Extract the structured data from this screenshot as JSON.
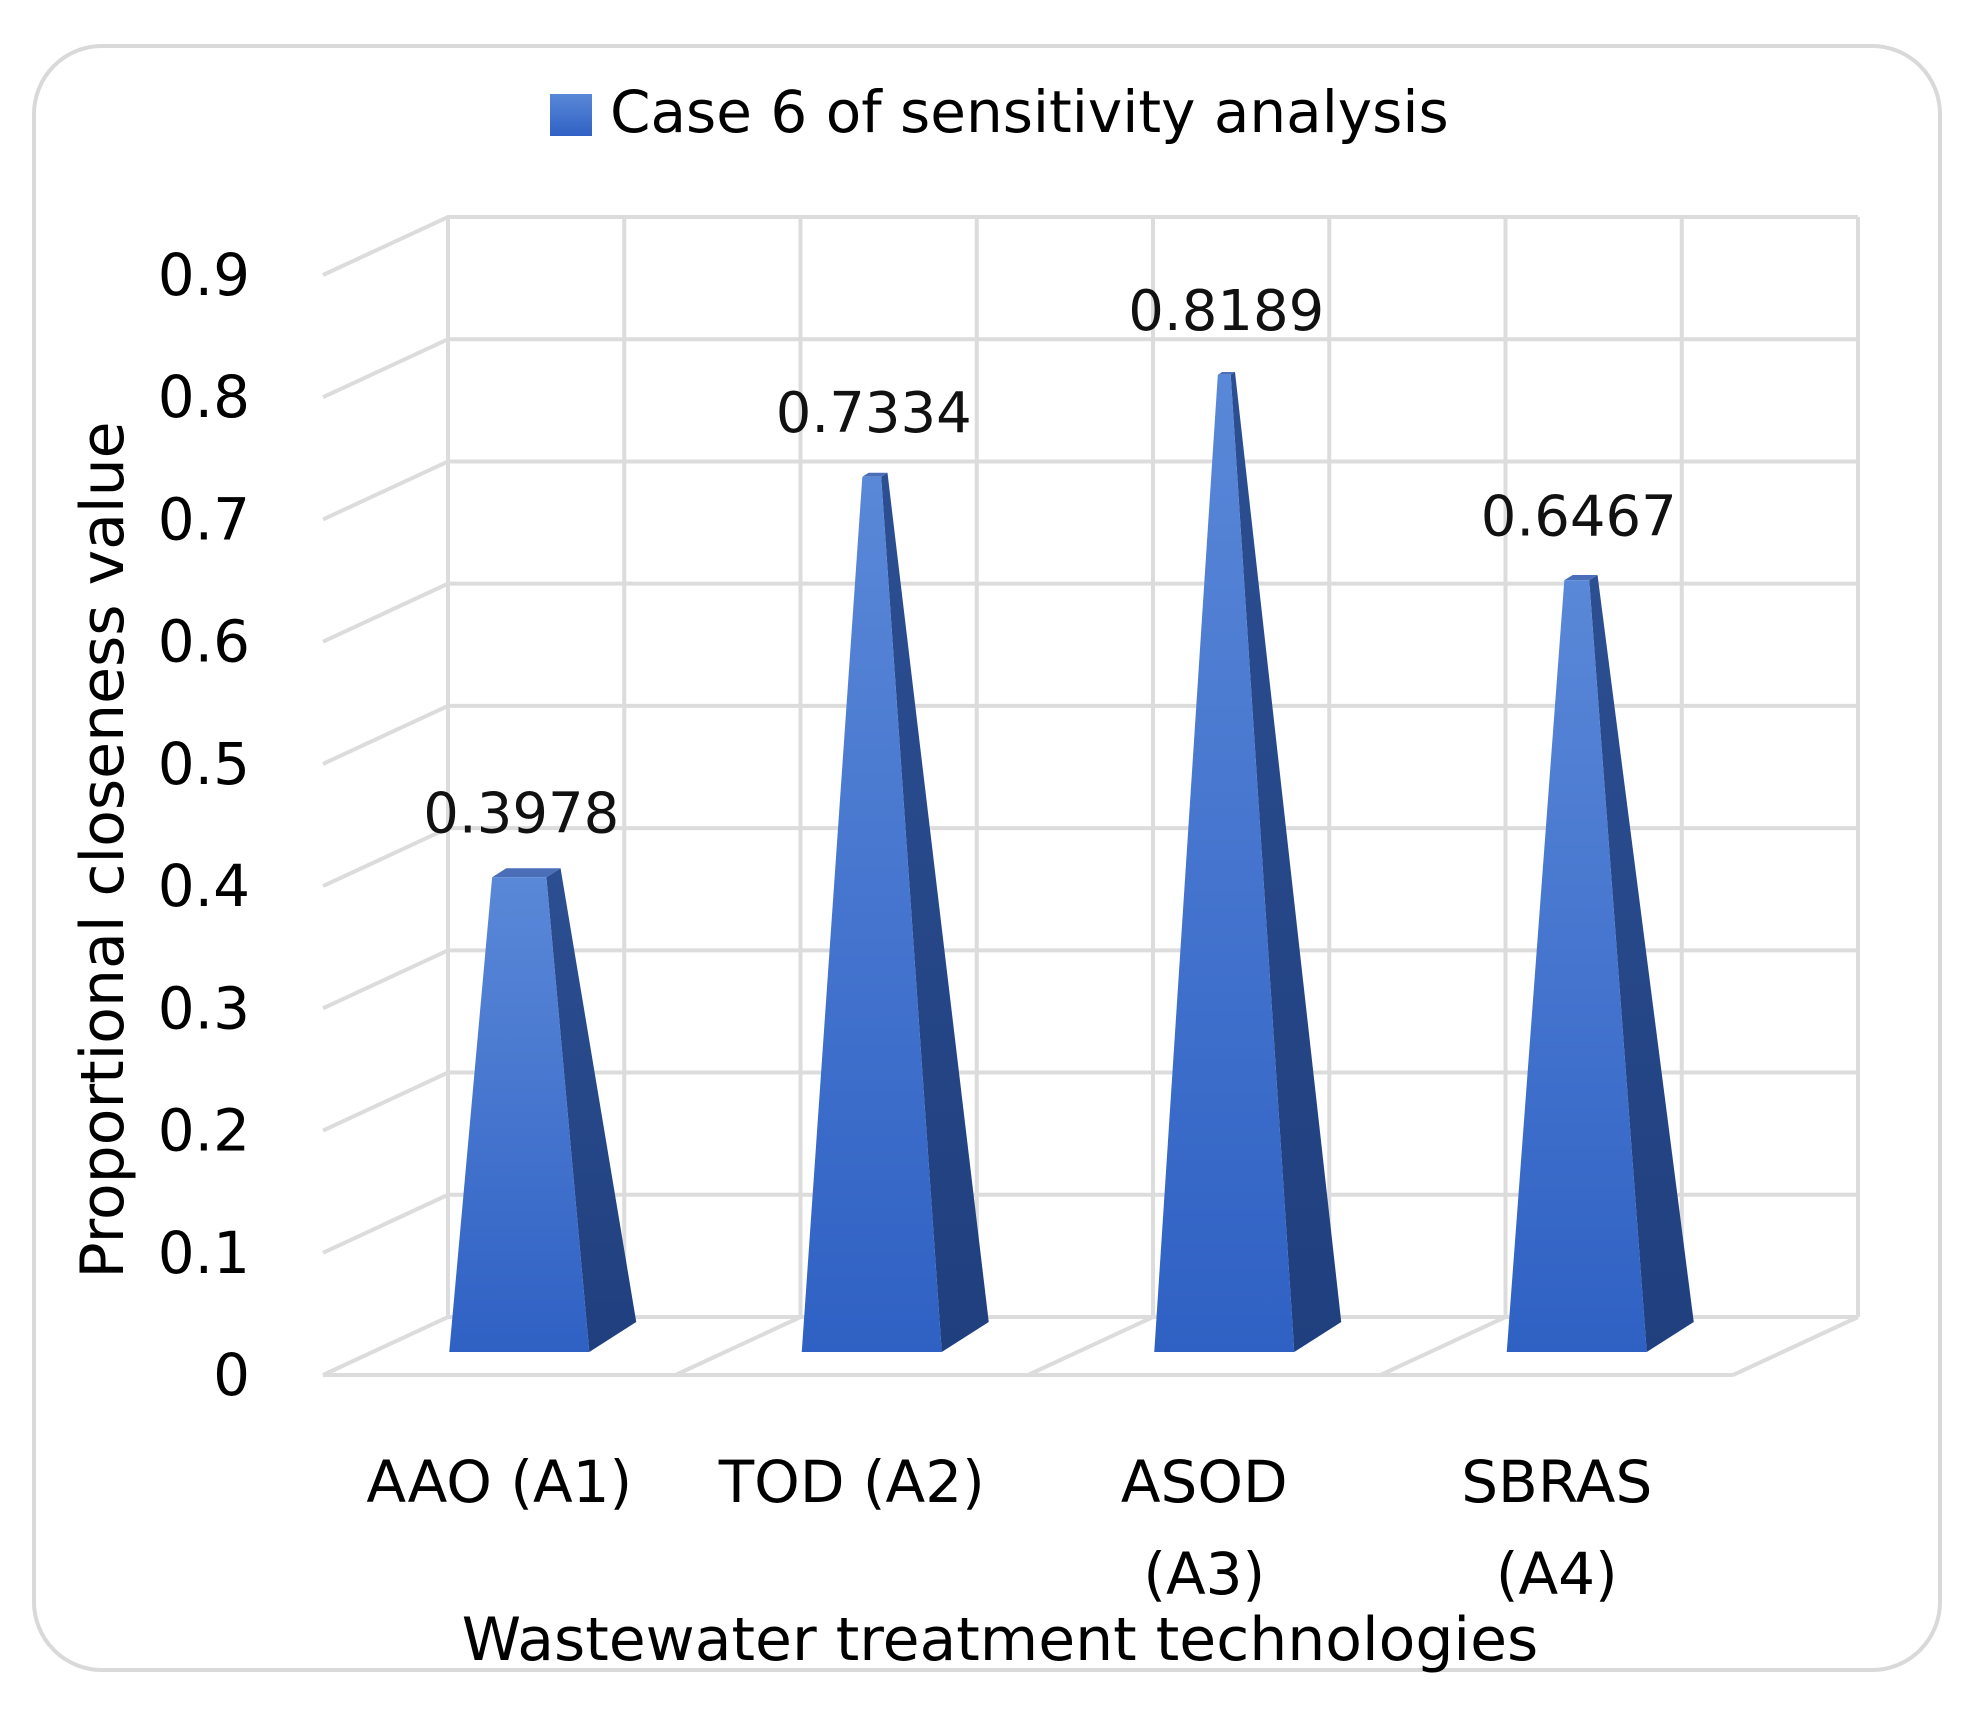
{
  "chart_data": {
    "type": "bar",
    "style": "3d-pyramid",
    "title": "",
    "legend": {
      "position": "top",
      "entries": [
        "Case 6 of sensitivity analysis"
      ]
    },
    "series": [
      {
        "name": "Case 6 of sensitivity analysis",
        "values": [
          0.3978,
          0.7334,
          0.8189,
          0.6467
        ],
        "color": "#3d6fcf"
      }
    ],
    "categories": [
      [
        "AAO (A1)"
      ],
      [
        "TOD (A2)"
      ],
      [
        "ASOD",
        "(A3)"
      ],
      [
        "SBRAS",
        "(A4)"
      ]
    ],
    "data_labels": [
      "0.3978",
      "0.7334",
      "0.8189",
      "0.6467"
    ],
    "yticks": [
      "0",
      "0.1",
      "0.2",
      "0.3",
      "0.4",
      "0.5",
      "0.6",
      "0.7",
      "0.8",
      "0.9"
    ],
    "ylim": [
      0,
      0.9
    ],
    "xlabel": "Wastewater treatment technologies",
    "ylabel": "Proportional closeness value",
    "grid": true
  }
}
